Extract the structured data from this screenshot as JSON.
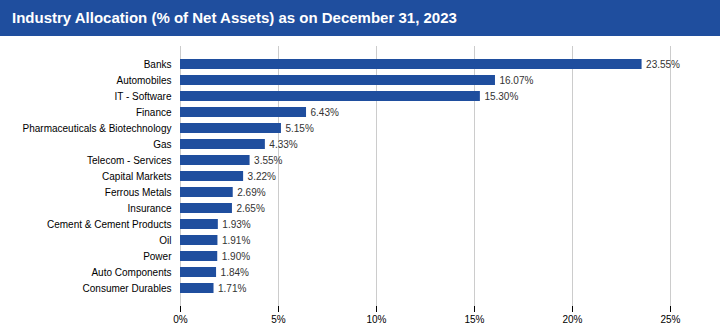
{
  "chart_data": {
    "type": "bar",
    "orientation": "horizontal",
    "title": "Industry Allocation (% of Net Assets) as on December 31, 2023",
    "categories": [
      "Consumer Durables",
      "Auto Components",
      "Power",
      "Oil",
      "Cement & Cement Products",
      "Insurance",
      "Ferrous Metals",
      "Capital Markets",
      "Telecom - Services",
      "Gas",
      "Pharmaceuticals & Biotechnology",
      "Finance",
      "IT - Software",
      "Automobiles",
      "Banks"
    ],
    "values": [
      1.71,
      1.84,
      1.9,
      1.91,
      1.93,
      2.65,
      2.69,
      3.22,
      3.55,
      4.33,
      5.15,
      6.43,
      15.3,
      16.07,
      23.55
    ],
    "value_labels": [
      "1.71%",
      "1.84%",
      "1.90%",
      "1.91%",
      "1.93%",
      "2.65%",
      "2.69%",
      "3.22%",
      "3.55%",
      "4.33%",
      "5.15%",
      "6.43%",
      "15.30%",
      "16.07%",
      "23.55%"
    ],
    "color": "#1f4e9e",
    "xlim": [
      0,
      25
    ],
    "xticks": [
      {
        "value": 0,
        "label": "0%"
      },
      {
        "value": 5,
        "label": "5%"
      },
      {
        "value": 10,
        "label": "10%"
      },
      {
        "value": 15,
        "label": "15%"
      },
      {
        "value": 20,
        "label": "20%"
      },
      {
        "value": 25,
        "label": "25%"
      }
    ],
    "grid": true,
    "data_labels": true
  }
}
